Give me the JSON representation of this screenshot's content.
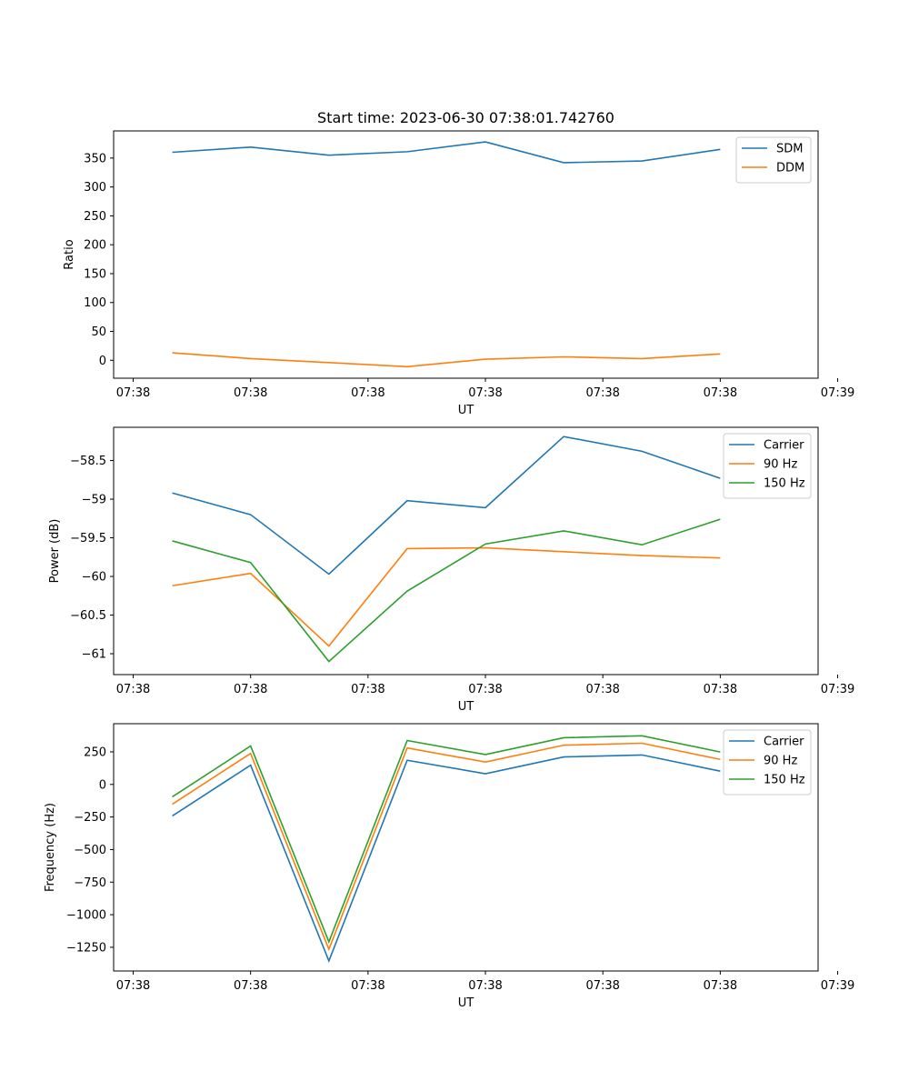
{
  "figure": {
    "title": "Start time: 2023-06-30 07:38:01.742760"
  },
  "colors": {
    "blue": "#1f77b4",
    "orange": "#ff7f0e",
    "green": "#2ca02c"
  },
  "chart_data": [
    {
      "type": "line",
      "title": "Start time: 2023-06-30 07:38:01.742760",
      "xlabel": "UT",
      "ylabel": "Ratio",
      "x_ticks": [
        "07:38",
        "07:38",
        "07:38",
        "07:38",
        "07:38",
        "07:38",
        "07:39"
      ],
      "x": [
        1,
        2,
        3,
        4,
        5,
        6,
        7,
        8
      ],
      "xlim": [
        0.25,
        9.25
      ],
      "ylim": [
        -31,
        397
      ],
      "y_ticks": [
        0,
        50,
        100,
        150,
        200,
        250,
        300,
        350
      ],
      "legend": "top-right",
      "grid": false,
      "series": [
        {
          "name": "SDM",
          "color": "#1f77b4",
          "values": [
            360,
            369,
            355,
            361,
            378,
            342,
            345,
            365
          ]
        },
        {
          "name": "DDM",
          "color": "#ff7f0e",
          "values": [
            13,
            3,
            -4,
            -11,
            2,
            6,
            3,
            11
          ]
        }
      ]
    },
    {
      "type": "line",
      "title": "",
      "xlabel": "UT",
      "ylabel": "Power (dB)",
      "x_ticks": [
        "07:38",
        "07:38",
        "07:38",
        "07:38",
        "07:38",
        "07:38",
        "07:39"
      ],
      "x": [
        1,
        2,
        3,
        4,
        5,
        6,
        7,
        8
      ],
      "xlim": [
        0.25,
        9.25
      ],
      "ylim": [
        -61.27,
        -58.07
      ],
      "y_ticks": [
        -61.0,
        -60.5,
        -60.0,
        -59.5,
        -59.0,
        -58.5
      ],
      "legend": "top-right",
      "grid": false,
      "series": [
        {
          "name": "Carrier",
          "color": "#1f77b4",
          "values": [
            -58.92,
            -59.2,
            -59.97,
            -59.02,
            -59.11,
            -58.19,
            -58.38,
            -58.73
          ]
        },
        {
          "name": "90 Hz",
          "color": "#ff7f0e",
          "values": [
            -60.12,
            -59.96,
            -60.9,
            -59.64,
            -59.63,
            -59.68,
            -59.73,
            -59.76
          ]
        },
        {
          "name": "150 Hz",
          "color": "#2ca02c",
          "values": [
            -59.54,
            -59.82,
            -61.1,
            -60.19,
            -59.58,
            -59.41,
            -59.59,
            -59.26
          ]
        }
      ]
    },
    {
      "type": "line",
      "title": "",
      "xlabel": "UT",
      "ylabel": "Frequency (Hz)",
      "x_ticks": [
        "07:38",
        "07:38",
        "07:38",
        "07:38",
        "07:38",
        "07:38",
        "07:39"
      ],
      "x": [
        1,
        2,
        3,
        4,
        5,
        6,
        7,
        8
      ],
      "xlim": [
        0.25,
        9.25
      ],
      "ylim": [
        -1432,
        466
      ],
      "y_ticks": [
        -1250,
        -1000,
        -750,
        -500,
        -250,
        0,
        250
      ],
      "legend": "top-right",
      "grid": false,
      "series": [
        {
          "name": "Carrier",
          "color": "#1f77b4",
          "values": [
            -242,
            148,
            -1355,
            185,
            82,
            211,
            226,
            102
          ]
        },
        {
          "name": "90 Hz",
          "color": "#ff7f0e",
          "values": [
            -152,
            238,
            -1265,
            280,
            172,
            301,
            316,
            192
          ]
        },
        {
          "name": "150 Hz",
          "color": "#2ca02c",
          "values": [
            -95,
            295,
            -1208,
            337,
            229,
            358,
            373,
            249
          ]
        }
      ]
    }
  ]
}
